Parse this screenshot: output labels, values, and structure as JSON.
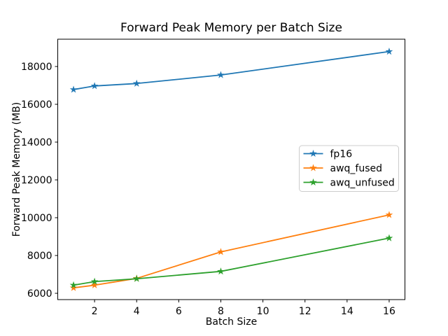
{
  "chart_data": {
    "type": "line",
    "title": "Forward Peak Memory per Batch Size",
    "xlabel": "Batch Size",
    "ylabel": "Forward Peak Memory (MB)",
    "x": [
      1,
      2,
      4,
      8,
      16
    ],
    "series": [
      {
        "name": "fp16",
        "color": "#1f77b4",
        "values": [
          16780,
          16970,
          17100,
          17550,
          18790
        ]
      },
      {
        "name": "awq_fused",
        "color": "#ff7f0e",
        "values": [
          6290,
          6430,
          6790,
          8190,
          10150
        ]
      },
      {
        "name": "awq_unfused",
        "color": "#2ca02c",
        "values": [
          6430,
          6620,
          6770,
          7160,
          8920
        ]
      }
    ],
    "xticks": [
      2,
      4,
      6,
      8,
      10,
      12,
      14,
      16
    ],
    "xtick_labels": [
      "2",
      "4",
      "6",
      "8",
      "10",
      "12",
      "14",
      "16"
    ],
    "yticks": [
      6000,
      8000,
      10000,
      12000,
      14000,
      16000,
      18000
    ],
    "ytick_labels": [
      "6000",
      "8000",
      "10000",
      "12000",
      "14000",
      "16000",
      "18000"
    ],
    "xlim": [
      0.25,
      16.75
    ],
    "ylim": [
      5667,
      19444
    ],
    "grid": false,
    "marker": "star",
    "legend_position": "center right",
    "colors": {
      "background": "#ffffff",
      "spine": "#000000",
      "legend_edge": "#cccccc",
      "legend_fill": "#ffffff"
    }
  }
}
